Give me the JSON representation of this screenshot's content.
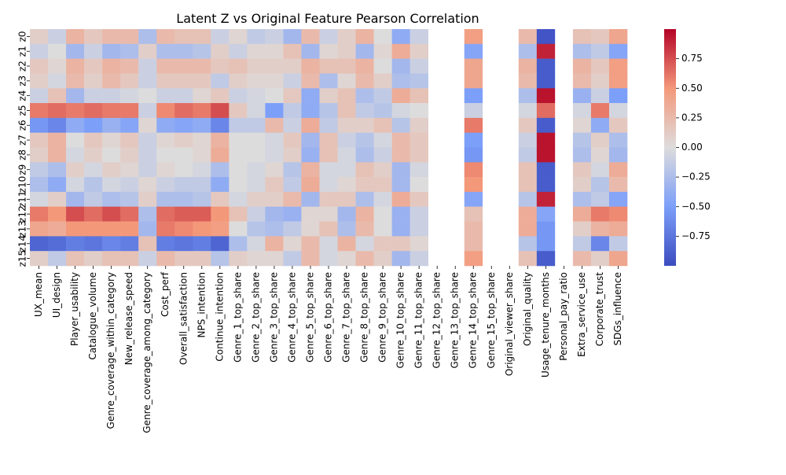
{
  "chart_data": {
    "type": "heatmap",
    "title": "Latent Z vs Original Feature Pearson Correlation",
    "xlabel": "",
    "ylabel": "",
    "rows": [
      "z0",
      "z1",
      "z2",
      "z3",
      "z4",
      "z5",
      "z6",
      "z7",
      "z8",
      "z9",
      "z10",
      "z11",
      "z12",
      "z13",
      "z14",
      "z15"
    ],
    "columns": [
      "UX_mean",
      "UI_design",
      "Player_usability",
      "Catalogue_volume",
      "Genre_coverage_within_category",
      "New_release_speed",
      "Genre_coverage_among_category",
      "Cost_perf",
      "Overall_satisfaction",
      "NPS_intention",
      "Continue_intention",
      "Genre_1_top_share",
      "Genre_2_top_share",
      "Genre_3_top_share",
      "Genre_4_top_share",
      "Genre_5_top_share",
      "Genre_6_top_share",
      "Genre_7_top_share",
      "Genre_8_top_share",
      "Genre_9_top_share",
      "Genre_10_top_share",
      "Genre_11_top_share",
      "Genre_12_top_share",
      "Genre_13_top_share",
      "Genre_14_top_share",
      "Genre_15_top_share",
      "Original_viewer_share",
      "Original_quality",
      "Usage_tenure_months",
      "Personal_pay_ratio",
      "Extra_service_use",
      "Corporate_trust",
      "SDGs_influence"
    ],
    "values": [
      [
        0.1,
        -0.1,
        0.3,
        0.15,
        0.25,
        0.25,
        -0.25,
        0.25,
        0.2,
        0.2,
        -0.1,
        0.05,
        -0.15,
        -0.1,
        -0.3,
        0.25,
        -0.1,
        0.1,
        0.3,
        0.0,
        -0.4,
        -0.1,
        null,
        null,
        0.45,
        null,
        null,
        0.25,
        -0.95,
        null,
        0.2,
        0.15,
        0.4
      ],
      [
        -0.1,
        0.0,
        -0.3,
        -0.1,
        -0.3,
        -0.25,
        0.1,
        -0.25,
        -0.25,
        -0.2,
        0.1,
        -0.1,
        0.05,
        0.05,
        0.2,
        -0.3,
        0.05,
        0.1,
        -0.3,
        0.05,
        0.35,
        0.1,
        null,
        null,
        -0.45,
        null,
        null,
        -0.25,
        0.9,
        null,
        -0.25,
        -0.15,
        -0.45
      ],
      [
        0.15,
        0.05,
        0.3,
        0.15,
        0.3,
        0.25,
        -0.1,
        0.25,
        0.25,
        0.25,
        0.15,
        0.2,
        0.1,
        0.1,
        0.1,
        0.3,
        0.2,
        0.2,
        0.3,
        0.0,
        -0.3,
        -0.1,
        null,
        null,
        0.4,
        null,
        null,
        0.3,
        -0.9,
        null,
        0.3,
        0.15,
        0.45
      ],
      [
        0.1,
        -0.05,
        0.25,
        0.1,
        0.25,
        0.15,
        -0.1,
        0.15,
        0.15,
        0.15,
        -0.15,
        0.1,
        0.05,
        0.05,
        -0.1,
        0.25,
        -0.25,
        0.05,
        0.25,
        0.1,
        -0.25,
        -0.2,
        null,
        null,
        0.4,
        null,
        null,
        0.25,
        -0.9,
        null,
        0.25,
        0.1,
        0.45
      ],
      [
        -0.1,
        0.2,
        -0.3,
        -0.1,
        -0.1,
        -0.05,
        0.0,
        -0.1,
        -0.1,
        0.05,
        0.15,
        -0.1,
        -0.05,
        0.0,
        0.15,
        -0.4,
        0.1,
        0.2,
        -0.25,
        -0.15,
        0.35,
        0.2,
        null,
        null,
        -0.5,
        null,
        null,
        -0.25,
        0.95,
        null,
        -0.35,
        -0.1,
        -0.5
      ],
      [
        0.6,
        0.65,
        0.6,
        0.65,
        0.6,
        0.6,
        -0.1,
        0.55,
        0.65,
        0.6,
        0.75,
        0.15,
        -0.05,
        -0.5,
        -0.15,
        -0.4,
        -0.2,
        0.2,
        -0.15,
        -0.2,
        -0.05,
        0.0,
        null,
        null,
        -0.1,
        null,
        null,
        -0.05,
        0.65,
        null,
        -0.05,
        0.6,
        -0.05
      ],
      [
        -0.55,
        -0.65,
        -0.4,
        -0.5,
        -0.35,
        -0.45,
        0.05,
        -0.4,
        -0.45,
        -0.4,
        -0.65,
        -0.15,
        -0.15,
        0.25,
        -0.1,
        0.35,
        -0.15,
        0.1,
        0.1,
        0.2,
        -0.2,
        0.1,
        null,
        null,
        0.6,
        null,
        null,
        0.15,
        -0.9,
        null,
        0.05,
        -0.4,
        0.15
      ],
      [
        0.15,
        0.3,
        0.0,
        0.15,
        0.05,
        0.15,
        -0.1,
        0.05,
        0.1,
        0.05,
        0.3,
        0.0,
        0.0,
        -0.05,
        0.15,
        -0.3,
        0.2,
        -0.1,
        -0.2,
        -0.05,
        0.25,
        0.15,
        null,
        null,
        -0.5,
        null,
        null,
        -0.1,
        0.95,
        null,
        -0.2,
        0.1,
        -0.25
      ],
      [
        0.1,
        0.3,
        -0.05,
        0.1,
        0.0,
        0.1,
        -0.1,
        0.0,
        0.0,
        0.05,
        0.35,
        0.0,
        0.0,
        -0.05,
        0.1,
        -0.35,
        0.2,
        -0.05,
        -0.25,
        -0.1,
        0.25,
        0.15,
        null,
        null,
        -0.55,
        null,
        null,
        -0.15,
        0.95,
        null,
        -0.25,
        0.05,
        -0.3
      ],
      [
        -0.15,
        -0.25,
        0.1,
        -0.05,
        0.1,
        0.05,
        -0.1,
        0.05,
        0.0,
        -0.05,
        -0.25,
        0.0,
        -0.05,
        0.05,
        -0.2,
        0.3,
        -0.05,
        -0.05,
        0.2,
        0.1,
        -0.3,
        -0.05,
        null,
        null,
        0.55,
        null,
        null,
        0.2,
        -0.9,
        null,
        0.15,
        -0.05,
        0.35
      ],
      [
        -0.25,
        -0.4,
        -0.05,
        -0.2,
        -0.05,
        -0.1,
        0.05,
        -0.1,
        -0.15,
        -0.15,
        -0.4,
        0.0,
        -0.05,
        0.15,
        -0.15,
        0.35,
        -0.05,
        0.05,
        0.15,
        0.15,
        -0.3,
        0.0,
        null,
        null,
        0.5,
        null,
        null,
        0.2,
        -0.9,
        null,
        0.1,
        -0.2,
        0.25
      ],
      [
        -0.05,
        0.1,
        -0.3,
        -0.15,
        -0.25,
        -0.2,
        0.1,
        -0.25,
        -0.25,
        -0.2,
        0.15,
        -0.05,
        0.1,
        0.1,
        0.25,
        -0.3,
        0.15,
        0.15,
        -0.25,
        -0.05,
        0.35,
        0.15,
        null,
        null,
        -0.45,
        null,
        null,
        -0.2,
        0.9,
        null,
        -0.25,
        -0.15,
        -0.45
      ],
      [
        0.6,
        0.5,
        0.75,
        0.65,
        0.75,
        0.65,
        -0.25,
        0.65,
        0.7,
        0.7,
        0.5,
        0.2,
        -0.1,
        -0.3,
        -0.35,
        0.05,
        0.05,
        -0.3,
        0.3,
        0.0,
        -0.35,
        -0.1,
        null,
        null,
        0.2,
        null,
        null,
        0.35,
        -0.45,
        null,
        0.35,
        0.6,
        0.55
      ],
      [
        0.4,
        0.35,
        0.5,
        0.5,
        0.5,
        0.5,
        -0.3,
        0.6,
        0.55,
        0.5,
        0.45,
        0.0,
        -0.2,
        -0.25,
        -0.15,
        0.05,
        0.2,
        -0.25,
        0.25,
        0.0,
        -0.35,
        -0.1,
        null,
        null,
        0.25,
        null,
        null,
        0.35,
        -0.55,
        null,
        0.1,
        0.3,
        0.35
      ],
      [
        -0.85,
        -0.8,
        -0.7,
        -0.75,
        -0.65,
        -0.7,
        0.2,
        -0.7,
        -0.75,
        -0.7,
        -0.85,
        -0.25,
        -0.05,
        0.3,
        0.05,
        0.25,
        -0.05,
        0.3,
        -0.05,
        0.15,
        0.15,
        0.05,
        null,
        null,
        0.25,
        null,
        null,
        -0.2,
        -0.55,
        null,
        -0.15,
        -0.65,
        -0.15
      ],
      [
        0.1,
        -0.15,
        0.2,
        0.1,
        0.2,
        0.2,
        -0.1,
        0.25,
        0.15,
        0.15,
        -0.2,
        0.1,
        0.05,
        0.05,
        -0.15,
        0.25,
        -0.05,
        0.05,
        0.25,
        0.1,
        -0.3,
        -0.1,
        null,
        null,
        0.45,
        null,
        null,
        0.2,
        -0.9,
        null,
        0.25,
        0.1,
        0.4
      ]
    ],
    "vmin": -1,
    "vmax": 1,
    "colormap": "coolwarm",
    "colorbar_ticks": [
      0.75,
      0.5,
      0.25,
      0.0,
      -0.25,
      -0.5,
      -0.75
    ],
    "grid": false
  }
}
